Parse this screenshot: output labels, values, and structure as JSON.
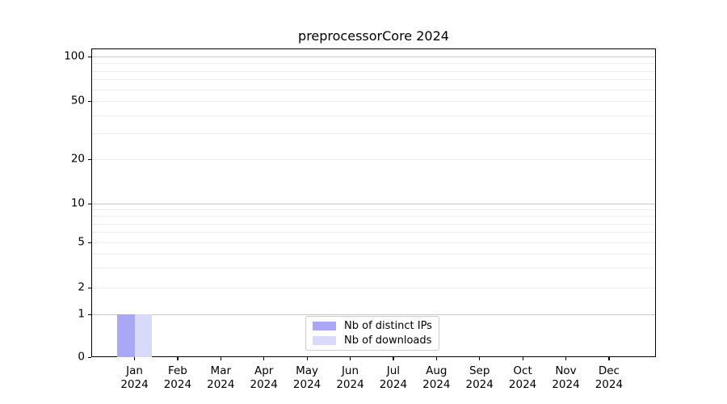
{
  "chart_data": {
    "type": "bar",
    "title": "preprocessorCore 2024",
    "categories": [
      "Jan",
      "Feb",
      "Mar",
      "Apr",
      "May",
      "Jun",
      "Jul",
      "Aug",
      "Sep",
      "Oct",
      "Nov",
      "Dec"
    ],
    "x_tick_year": "2024",
    "series": [
      {
        "name": "Nb of distinct IPs",
        "color": "#a8a8f7",
        "values": [
          1,
          0,
          0,
          0,
          0,
          0,
          0,
          0,
          0,
          0,
          0,
          0
        ]
      },
      {
        "name": "Nb of downloads",
        "color": "#d9d9f9",
        "values": [
          1,
          0,
          0,
          0,
          0,
          0,
          0,
          0,
          0,
          0,
          0,
          0
        ]
      }
    ],
    "yscale": "symlog",
    "ylim": [
      0,
      100
    ],
    "yticks": [
      0,
      1,
      2,
      5,
      10,
      20,
      50,
      100
    ],
    "major_gridlines": [
      1,
      10,
      100
    ],
    "minor_gridlines": [
      3,
      4,
      6,
      7,
      8,
      9,
      30,
      40,
      60,
      70,
      80,
      90
    ],
    "grid": true,
    "legend_position": "lower center",
    "colors": {
      "grid_major": "#c9c9c9",
      "grid_minor": "#ededed",
      "axis": "#000000",
      "text": "#000000"
    }
  }
}
